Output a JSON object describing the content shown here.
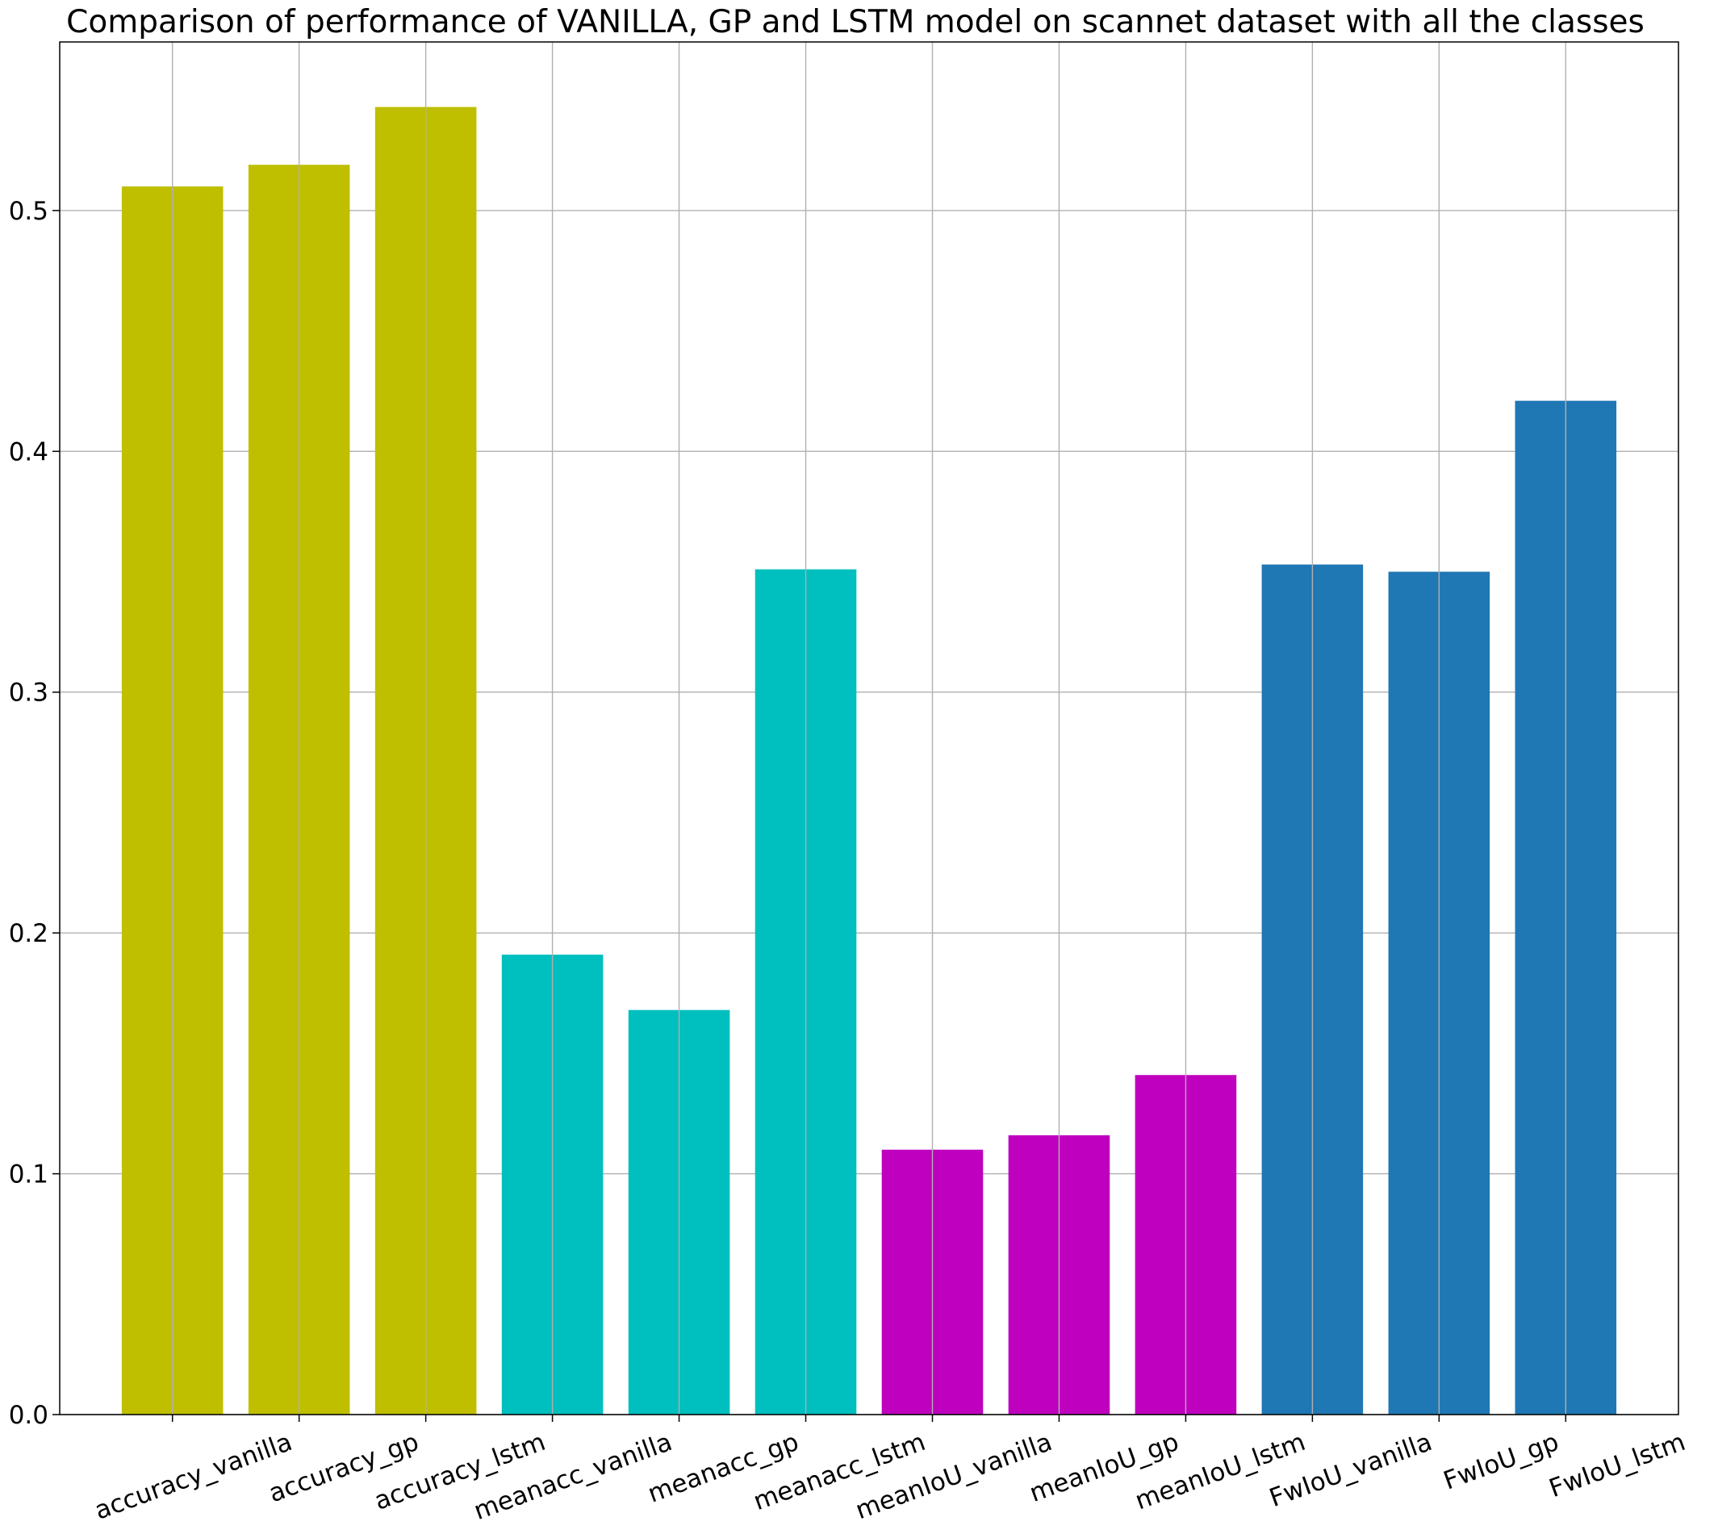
{
  "chart_data": {
    "type": "bar",
    "title": "Comparison of performance of VANILLA, GP and LSTM model on scannet dataset with all the classes",
    "xlabel": "",
    "ylabel": "",
    "ylim": [
      0,
      0.57
    ],
    "yticks": [
      0.0,
      0.1,
      0.2,
      0.3,
      0.4,
      0.5
    ],
    "ytick_labels": [
      "0.0",
      "0.1",
      "0.2",
      "0.3",
      "0.4",
      "0.5"
    ],
    "grid": true,
    "categories": [
      "accuracy_vanilla",
      "accuracy_gp",
      "accuracy_lstm",
      "meanacc_vanilla",
      "meanacc_gp",
      "meanacc_lstm",
      "meanIoU_vanilla",
      "meanIoU_gp",
      "meanIoU_lstm",
      "FwIoU_vanilla",
      "FwIoU_gp",
      "FwIoU_lstm"
    ],
    "values": [
      0.51,
      0.519,
      0.543,
      0.191,
      0.168,
      0.351,
      0.11,
      0.116,
      0.141,
      0.353,
      0.35,
      0.421
    ],
    "colors": [
      "#bfbf00",
      "#bfbf00",
      "#bfbf00",
      "#00bfbf",
      "#00bfbf",
      "#00bfbf",
      "#bf00bf",
      "#bf00bf",
      "#bf00bf",
      "#1f77b4",
      "#1f77b4",
      "#1f77b4"
    ]
  }
}
